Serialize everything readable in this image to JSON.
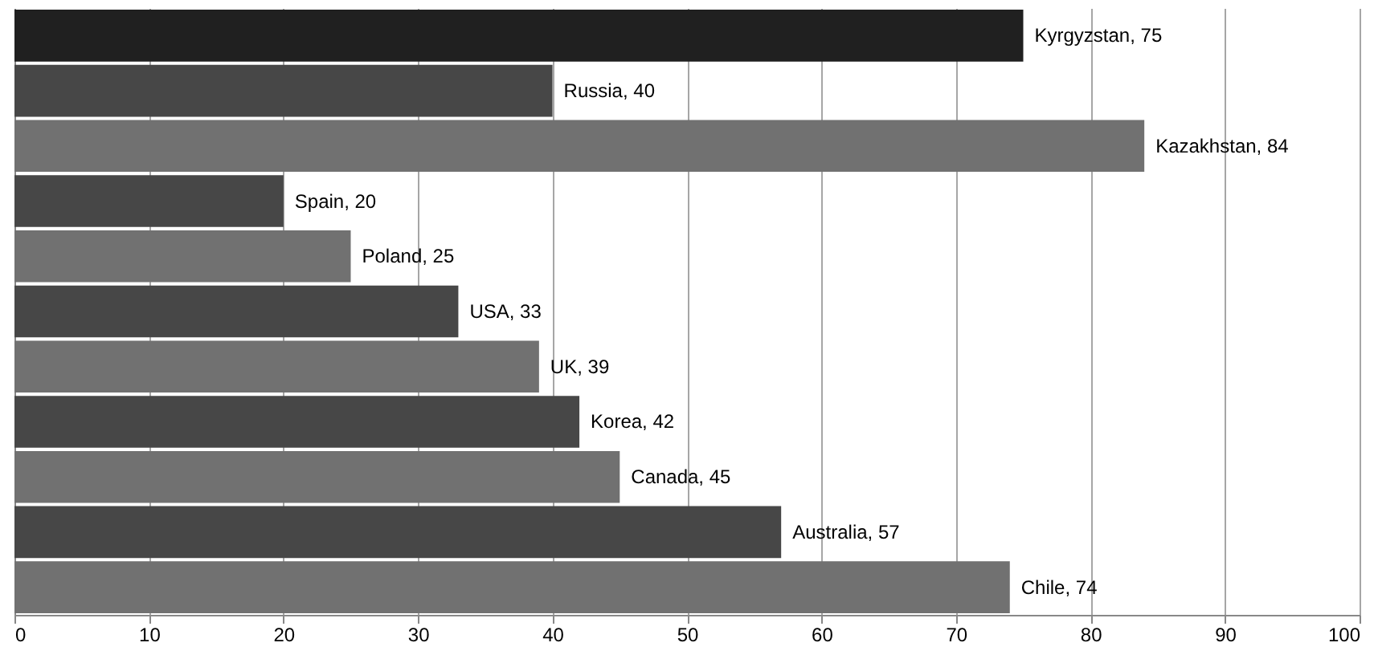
{
  "chart_data": {
    "type": "bar",
    "orientation": "horizontal",
    "categories": [
      null,
      null,
      null,
      null,
      null,
      null,
      null,
      null,
      null,
      null,
      null
    ],
    "values": [
      75,
      40,
      84,
      20,
      25,
      33,
      39,
      42,
      45,
      57,
      74
    ],
    "colors": [
      "#202020",
      "#474747",
      "#717171",
      "#474747",
      "#717171",
      "#474747",
      "#717171",
      "#474747",
      "#717171",
      "#474747",
      "#717171"
    ],
    "value_labels": [
      "Kyrgyzstan, 75",
      "Russia, 40",
      "Kazakhstan, 84",
      "Spain, 20",
      "Poland, 25",
      "USA, 33",
      "UK, 39",
      "Korea, 42",
      "Canada, 45",
      "Australia, 57",
      "Chile, 74"
    ],
    "xlim": [
      0,
      100
    ],
    "xticks": [
      0,
      10,
      20,
      30,
      40,
      50,
      60,
      70,
      80,
      90,
      100
    ],
    "grid": "x",
    "tick_labels": "x"
  }
}
